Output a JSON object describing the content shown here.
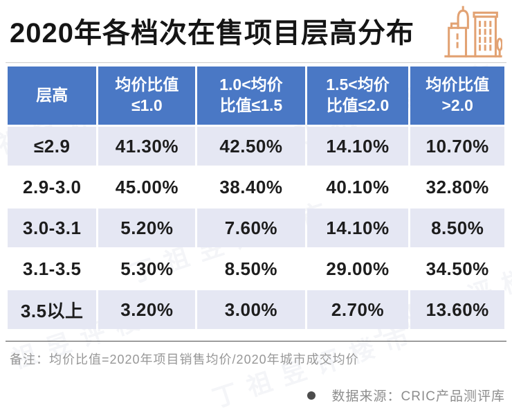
{
  "page": {
    "title": "2020年各档次在售项目层高分布",
    "watermark": "丁祖昱评楼市",
    "note": "备注：均价比值=2020年项目销售均价/2020年城市成交均价",
    "source": "数据来源：CRIC产品测评库"
  },
  "colors": {
    "header_blue": "#4A78C5",
    "row_light_lavender": "#E5E7F3",
    "icon_orange": "#E2A273",
    "body_text": "#1D1D1D",
    "note_gray": "#979797"
  },
  "icons": {
    "title_icon": "buildings-icon",
    "source_icon": "bullet-dot"
  },
  "chart_data": {
    "type": "table",
    "title": "2020年各档次在售项目层高分布",
    "columns": [
      "层高",
      "均价比值≤1.0",
      "1.0<均价比值≤1.5",
      "1.5<均价比值≤2.0",
      "均价比值>2.0"
    ],
    "column_display": [
      "层高",
      "均价比值\n≤1.0",
      "1.0<均价\n比值≤1.5",
      "1.5<均价\n比值≤2.0",
      "均价比值\n>2.0"
    ],
    "rows": [
      [
        "≤2.9",
        "41.30%",
        "42.50%",
        "14.10%",
        "10.70%"
      ],
      [
        "2.9-3.0",
        "45.00%",
        "38.40%",
        "40.10%",
        "32.80%"
      ],
      [
        "3.0-3.1",
        "5.20%",
        "7.60%",
        "14.10%",
        "8.50%"
      ],
      [
        "3.1-3.5",
        "5.30%",
        "8.50%",
        "29.00%",
        "34.50%"
      ],
      [
        "3.5以上",
        "3.20%",
        "3.00%",
        "2.70%",
        "13.60%"
      ]
    ],
    "banded_row_indices": [
      0,
      2,
      4
    ],
    "note": "均价比值=2020年项目销售均价/2020年城市成交均价",
    "source": "CRIC产品测评库",
    "layout": {
      "header_bg": "#4A78C5",
      "band_bg": "#E5E7F3",
      "grid": "white-gaps"
    }
  }
}
